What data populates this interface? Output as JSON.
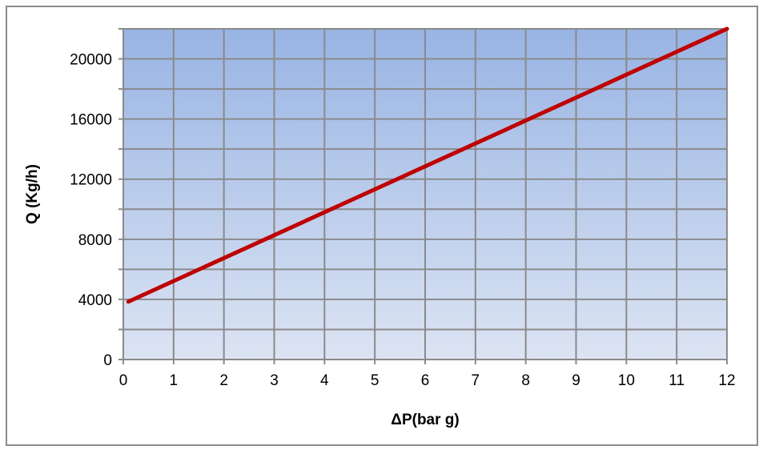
{
  "chart_data": {
    "type": "line",
    "title": "",
    "xlabel": "ΔP(bar g)",
    "ylabel": "Q (Kg/h)",
    "xlim": [
      0,
      12
    ],
    "ylim": [
      0,
      22000
    ],
    "x_ticks": [
      "0",
      "1",
      "2",
      "3",
      "4",
      "5",
      "6",
      "7",
      "8",
      "9",
      "10",
      "11",
      "12"
    ],
    "y_ticks": [
      "0",
      "4000",
      "8000",
      "12000",
      "16000",
      "20000"
    ],
    "grid": true,
    "legend": "none",
    "background_gradient": [
      "#dce4f3",
      "#98b4e4"
    ],
    "series": [
      {
        "color": "#c00000",
        "x": [
          0.1,
          12
        ],
        "y": [
          3850,
          22000
        ]
      }
    ]
  }
}
